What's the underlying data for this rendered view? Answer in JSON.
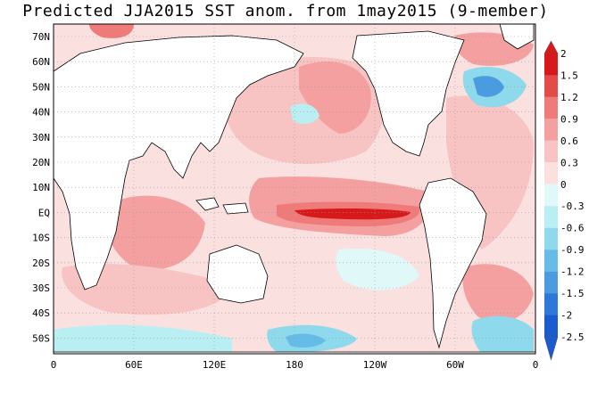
{
  "title": "Predicted JJA2015 SST anom. from 1may2015 (9-member)",
  "map": {
    "lat_labels": [
      "70N",
      "60N",
      "50N",
      "40N",
      "30N",
      "20N",
      "10N",
      "EQ",
      "10S",
      "20S",
      "30S",
      "40S",
      "50S"
    ],
    "lon_labels": [
      "0",
      "60E",
      "120E",
      "180",
      "120W",
      "60W",
      "0"
    ]
  },
  "colorbar": {
    "levels": [
      "2",
      "1.5",
      "1.2",
      "0.9",
      "0.6",
      "0.3",
      "0",
      "-0.3",
      "-0.6",
      "-0.9",
      "-1.2",
      "-1.5",
      "-2",
      "-2.5"
    ],
    "colors": [
      "#d7191c",
      "#e34a4a",
      "#ef7a7a",
      "#f4a0a0",
      "#f8c3c3",
      "#fbe0e0",
      "#ffffff",
      "#e0f8f8",
      "#b9eef2",
      "#8fd9ec",
      "#65bce6",
      "#4a9be0",
      "#2e78d8",
      "#1a5ccf"
    ]
  }
}
